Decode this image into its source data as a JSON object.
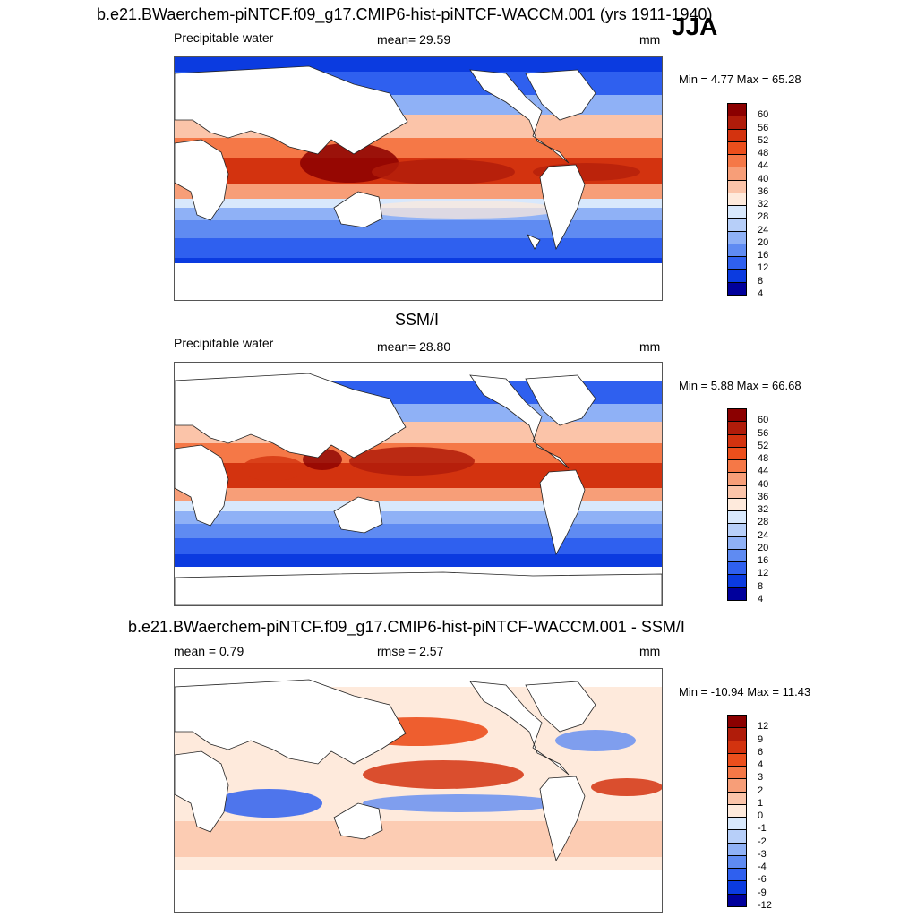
{
  "header": {
    "title": "b.e21.BWaerchem-piNTCF.f09_g17.CMIP6-hist-piNTCF-WACCM.001 (yrs 1911-1940)",
    "season": "JJA"
  },
  "panels": [
    {
      "id": "model",
      "subtitle": "",
      "left_label": "Precipitable water",
      "center_label": "mean=  29.59",
      "units": "mm",
      "minmax": "Min =   4.77 Max =  65.28",
      "colorbar_ticks": [
        "60",
        "56",
        "52",
        "48",
        "44",
        "40",
        "36",
        "32",
        "28",
        "24",
        "20",
        "16",
        "12",
        "8",
        "4"
      ]
    },
    {
      "id": "obs",
      "subtitle": "SSM/I",
      "left_label": "Precipitable water",
      "center_label": "mean=  28.80",
      "units": "mm",
      "minmax": "Min =   5.88 Max =  66.68",
      "colorbar_ticks": [
        "60",
        "56",
        "52",
        "48",
        "44",
        "40",
        "36",
        "32",
        "28",
        "24",
        "20",
        "16",
        "12",
        "8",
        "4"
      ]
    },
    {
      "id": "diff",
      "subtitle": "b.e21.BWaerchem-piNTCF.f09_g17.CMIP6-hist-piNTCF-WACCM.001 - SSM/I",
      "left_label": "mean =   0.79",
      "center_label": "rmse =   2.57",
      "units": "mm",
      "minmax": "Min = -10.94 Max =  11.43",
      "colorbar_ticks": [
        "12",
        "9",
        "6",
        "4",
        "3",
        "2",
        "1",
        "0",
        "-1",
        "-2",
        "-3",
        "-4",
        "-6",
        "-9",
        "-12"
      ]
    }
  ],
  "colors": {
    "abs_scale": [
      "#8b0000",
      "#b01c0a",
      "#d3330f",
      "#ec4f1c",
      "#f57847",
      "#f79e78",
      "#fbc4a9",
      "#feeadc",
      "#d8e8fc",
      "#b7cff9",
      "#8fb1f6",
      "#5f8bf2",
      "#2f60ef",
      "#0b3be0",
      "#00009c"
    ],
    "diff_scale": [
      "#8b0000",
      "#b01c0a",
      "#d3330f",
      "#ec4f1c",
      "#f57847",
      "#f79e78",
      "#fbc4a9",
      "#feeadc",
      "#d8e8fc",
      "#b7cff9",
      "#8fb1f6",
      "#5f8bf2",
      "#2f60ef",
      "#0b3be0",
      "#00009c"
    ]
  }
}
